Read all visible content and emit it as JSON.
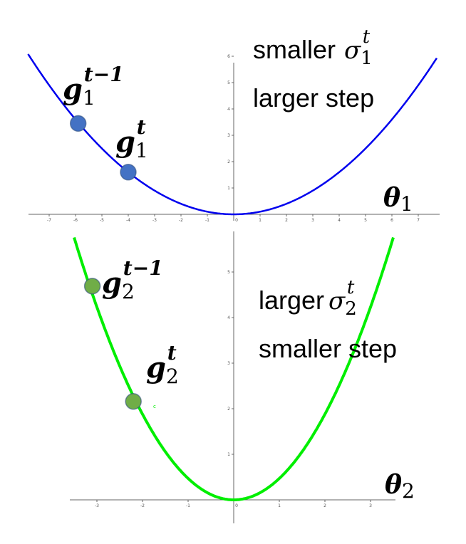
{
  "top_plot": {
    "curve_color": "#0000ee",
    "point_color": "#4472c4",
    "x_ticks": [
      "-7",
      "-6",
      "-5",
      "-4",
      "-3",
      "-2",
      "-1",
      "0",
      "1",
      "2",
      "3",
      "4",
      "5",
      "6",
      "7"
    ],
    "y_ticks": [
      "1",
      "2",
      "3",
      "4",
      "5",
      "6"
    ],
    "points": [
      {
        "x": -5.9,
        "y": 3.45
      },
      {
        "x": -4.0,
        "y": 1.6
      }
    ],
    "labels": {
      "g_prev": {
        "base": "g",
        "sub": "1",
        "sup": "t−1"
      },
      "g_curr": {
        "base": "g",
        "sub": "1",
        "sup": "t"
      },
      "axis": {
        "base": "θ",
        "sub": "1"
      },
      "note_line1": "smaller",
      "sigma": {
        "base": "σ",
        "sub": "1",
        "sup": "t"
      },
      "note_line2": "larger step"
    }
  },
  "bottom_plot": {
    "curve_color": "#00ee00",
    "point_color": "#70ad47",
    "x_ticks": [
      "-3",
      "-2",
      "-1",
      "0",
      "1",
      "2",
      "3"
    ],
    "y_ticks": [
      "1",
      "2",
      "3",
      "4",
      "5"
    ],
    "points": [
      {
        "x": -3.1,
        "y": 4.69
      },
      {
        "x": -2.2,
        "y": 2.16
      }
    ],
    "point_tag": "c",
    "labels": {
      "g_prev": {
        "base": "g",
        "sub": "2",
        "sup": "t−1"
      },
      "g_curr": {
        "base": "g",
        "sub": "2",
        "sup": "t"
      },
      "axis": {
        "base": "θ",
        "sub": "2"
      },
      "note_line1": "larger",
      "sigma": {
        "base": "σ",
        "sub": "2",
        "sup": "t"
      },
      "note_line2": "smaller step"
    }
  }
}
